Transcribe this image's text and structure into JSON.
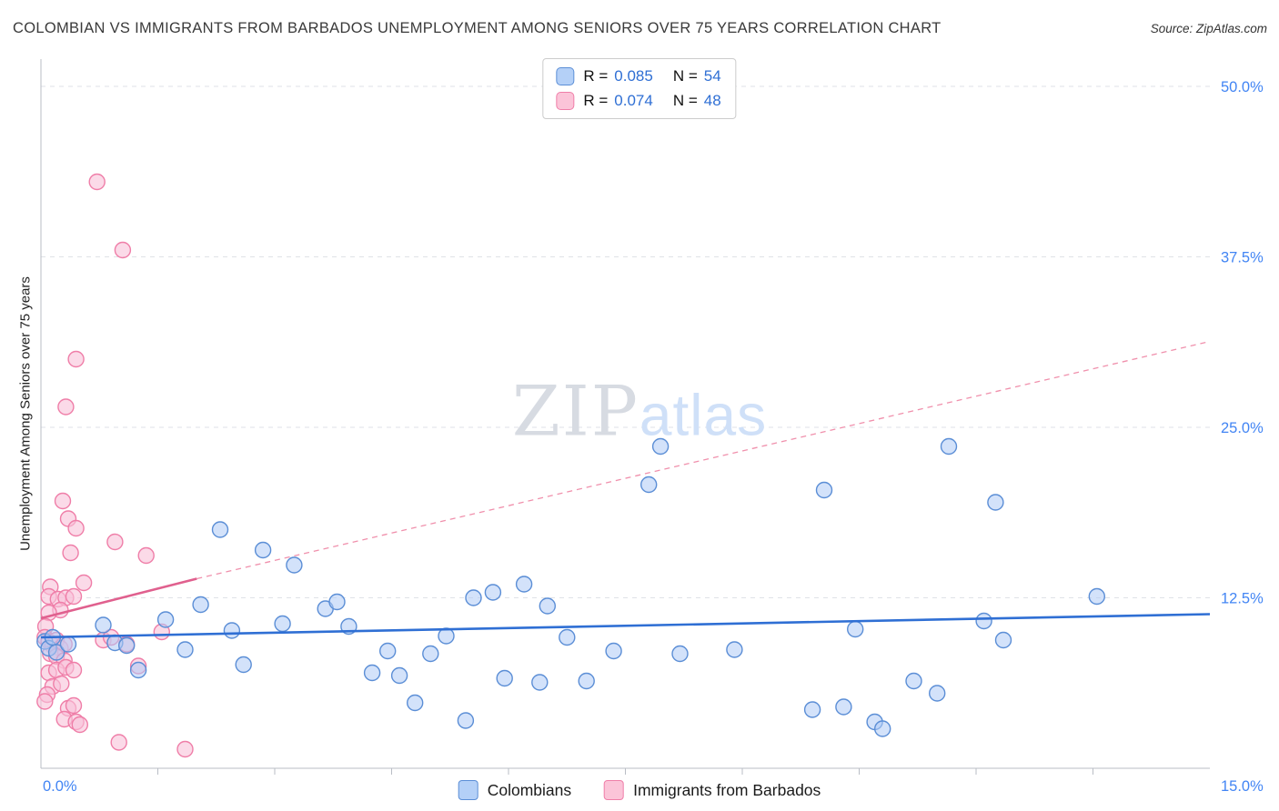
{
  "header": {
    "title": "COLOMBIAN VS IMMIGRANTS FROM BARBADOS UNEMPLOYMENT AMONG SENIORS OVER 75 YEARS CORRELATION CHART",
    "source": "Source: ZipAtlas.com"
  },
  "watermark": {
    "zip": "ZIP",
    "atlas": "atlas"
  },
  "stats_legend": {
    "rows": [
      {
        "r_label": "R =",
        "r": "0.085",
        "n_label": "N =",
        "n": "54"
      },
      {
        "r_label": "R =",
        "r": "0.074",
        "n_label": "N =",
        "n": "48"
      }
    ]
  },
  "bottom_legend": [
    {
      "label": "Colombians"
    },
    {
      "label": "Immigrants from Barbados"
    }
  ],
  "colors": {
    "accent_text": "#4285f4",
    "colombians_fill": "#b4d0f7",
    "colombians_stroke": "#5b8ed6",
    "colombians_trend": "#2f6fd4",
    "barbados_fill": "#fbc4d8",
    "barbados_stroke": "#ef7ea8",
    "barbados_trend": "#e0608e"
  },
  "chart_data": {
    "type": "scatter",
    "title": "Colombian vs Immigrants from Barbados Unemployment Among Seniors over 75 years Correlation Chart",
    "xlabel": "",
    "ylabel": "Unemployment Among Seniors over 75 years",
    "xlim": [
      0,
      15
    ],
    "ylim": [
      0,
      52
    ],
    "grid": true,
    "x_tick_labels": {
      "min": "0.0%",
      "max": "15.0%"
    },
    "y_ticks": [
      {
        "value": 50.0,
        "label": "50.0%"
      },
      {
        "value": 37.5,
        "label": "37.5%"
      },
      {
        "value": 25.0,
        "label": "25.0%"
      },
      {
        "value": 12.5,
        "label": "12.5%"
      }
    ],
    "series": [
      {
        "id": "colombians",
        "name": "Colombians",
        "R": 0.085,
        "N": 54,
        "fill": "#aecbf5",
        "fill_opacity": 0.55,
        "stroke": "#5b8ed6",
        "points": [
          [
            0.05,
            9.3
          ],
          [
            0.1,
            8.8
          ],
          [
            0.15,
            9.6
          ],
          [
            0.2,
            8.5
          ],
          [
            0.35,
            9.1
          ],
          [
            0.8,
            10.5
          ],
          [
            0.95,
            9.2
          ],
          [
            1.1,
            9.0
          ],
          [
            1.25,
            7.2
          ],
          [
            1.6,
            10.9
          ],
          [
            1.85,
            8.7
          ],
          [
            2.05,
            12.0
          ],
          [
            2.3,
            17.5
          ],
          [
            2.45,
            10.1
          ],
          [
            2.6,
            7.6
          ],
          [
            2.85,
            16.0
          ],
          [
            3.1,
            10.6
          ],
          [
            3.25,
            14.9
          ],
          [
            3.65,
            11.7
          ],
          [
            3.8,
            12.2
          ],
          [
            3.95,
            10.4
          ],
          [
            4.25,
            7.0
          ],
          [
            4.45,
            8.6
          ],
          [
            4.6,
            6.8
          ],
          [
            4.8,
            4.8
          ],
          [
            5.0,
            8.4
          ],
          [
            5.2,
            9.7
          ],
          [
            5.45,
            3.5
          ],
          [
            5.55,
            12.5
          ],
          [
            5.8,
            12.9
          ],
          [
            5.95,
            6.6
          ],
          [
            6.2,
            13.5
          ],
          [
            6.4,
            6.3
          ],
          [
            6.5,
            11.9
          ],
          [
            6.75,
            9.6
          ],
          [
            7.0,
            6.4
          ],
          [
            7.35,
            8.6
          ],
          [
            7.8,
            20.8
          ],
          [
            7.95,
            23.6
          ],
          [
            8.2,
            8.4
          ],
          [
            8.9,
            8.7
          ],
          [
            9.9,
            4.3
          ],
          [
            10.05,
            20.4
          ],
          [
            10.3,
            4.5
          ],
          [
            10.45,
            10.2
          ],
          [
            10.7,
            3.4
          ],
          [
            10.8,
            2.9
          ],
          [
            11.2,
            6.4
          ],
          [
            11.5,
            5.5
          ],
          [
            11.65,
            23.6
          ],
          [
            12.1,
            10.8
          ],
          [
            12.25,
            19.5
          ],
          [
            12.35,
            9.4
          ],
          [
            13.55,
            12.6
          ]
        ],
        "trend_lines": [
          {
            "x1": 0,
            "y1": 9.6,
            "x2": 15,
            "y2": 11.3,
            "dashed": false,
            "color": "#2f6fd4"
          }
        ]
      },
      {
        "id": "barbados",
        "name": "Immigrants from Barbados",
        "R": 0.074,
        "N": 48,
        "fill": "#f9c2d8",
        "fill_opacity": 0.6,
        "stroke": "#ef7ea8",
        "points": [
          [
            0.72,
            43.0
          ],
          [
            1.05,
            38.0
          ],
          [
            0.45,
            30.0
          ],
          [
            0.32,
            26.5
          ],
          [
            0.28,
            19.6
          ],
          [
            0.35,
            18.3
          ],
          [
            0.45,
            17.6
          ],
          [
            0.38,
            15.8
          ],
          [
            0.95,
            16.6
          ],
          [
            1.35,
            15.6
          ],
          [
            0.55,
            13.6
          ],
          [
            0.12,
            13.3
          ],
          [
            0.1,
            12.6
          ],
          [
            0.22,
            12.4
          ],
          [
            0.32,
            12.5
          ],
          [
            0.42,
            12.6
          ],
          [
            0.25,
            11.6
          ],
          [
            0.1,
            11.4
          ],
          [
            0.06,
            10.4
          ],
          [
            0.05,
            9.6
          ],
          [
            0.1,
            9.3
          ],
          [
            0.15,
            9.0
          ],
          [
            0.2,
            9.4
          ],
          [
            0.25,
            8.8
          ],
          [
            0.3,
            9.1
          ],
          [
            0.12,
            8.4
          ],
          [
            0.2,
            8.2
          ],
          [
            0.3,
            7.9
          ],
          [
            0.1,
            7.0
          ],
          [
            0.2,
            7.2
          ],
          [
            0.32,
            7.4
          ],
          [
            0.42,
            7.2
          ],
          [
            0.15,
            6.0
          ],
          [
            0.26,
            6.2
          ],
          [
            0.08,
            5.4
          ],
          [
            0.05,
            4.9
          ],
          [
            0.35,
            4.4
          ],
          [
            0.42,
            4.6
          ],
          [
            0.3,
            3.6
          ],
          [
            0.45,
            3.4
          ],
          [
            0.5,
            3.2
          ],
          [
            1.0,
            1.9
          ],
          [
            1.85,
            1.4
          ],
          [
            0.8,
            9.4
          ],
          [
            0.9,
            9.6
          ],
          [
            1.1,
            9.1
          ],
          [
            1.25,
            7.5
          ],
          [
            1.55,
            10.0
          ]
        ],
        "trend_lines": [
          {
            "x1": 0,
            "y1": 11.0,
            "x2": 2.0,
            "y2": 13.9,
            "dashed": false,
            "color": "#e0608e"
          },
          {
            "x1": 2.0,
            "y1": 13.9,
            "x2": 15,
            "y2": 31.3,
            "dashed": true,
            "color": "#f090ac"
          }
        ]
      }
    ]
  }
}
